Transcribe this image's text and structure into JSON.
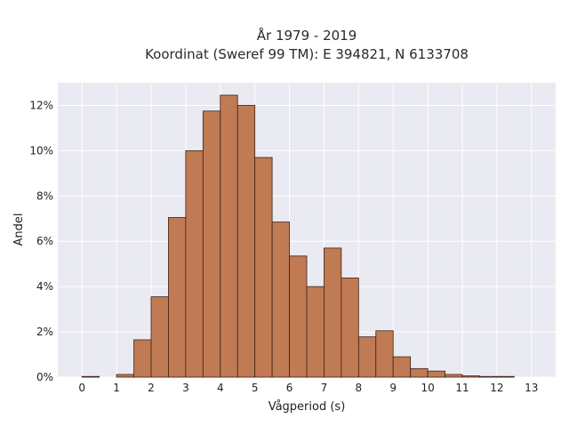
{
  "chart_data": {
    "type": "bar",
    "title_lines": [
      "År 1979 - 2019",
      "Koordinat (Sweref 99 TM): E 394821, N 6133708"
    ],
    "xlabel": "Vågperiod (s)",
    "ylabel": "Andel",
    "bin_width": 0.5,
    "bin_starts": [
      0,
      0.5,
      1,
      1.5,
      2,
      2.5,
      3,
      3.5,
      4,
      4.5,
      5,
      5.5,
      6,
      6.5,
      7,
      7.5,
      8,
      8.5,
      9,
      9.5,
      10,
      10.5,
      11,
      11.5,
      12,
      12.5
    ],
    "values": [
      0.02,
      0,
      0.12,
      1.65,
      3.55,
      7.05,
      10.0,
      11.75,
      12.45,
      12.0,
      9.7,
      6.85,
      5.35,
      4.0,
      5.7,
      4.38,
      1.78,
      2.05,
      0.9,
      0.38,
      0.27,
      0.12,
      0.06,
      0.03,
      0.02,
      0
    ],
    "value_unit": "%",
    "xlim": [
      -0.7,
      13.7
    ],
    "ylim": [
      0,
      13
    ],
    "x_ticks": [
      0,
      1,
      2,
      3,
      4,
      5,
      6,
      7,
      8,
      9,
      10,
      11,
      12,
      13
    ],
    "x_tick_labels": [
      "0",
      "1",
      "2",
      "3",
      "4",
      "5",
      "6",
      "7",
      "8",
      "9",
      "10",
      "11",
      "12",
      "13"
    ],
    "y_ticks": [
      0,
      2,
      4,
      6,
      8,
      10,
      12
    ],
    "y_tick_labels": [
      "0%",
      "2%",
      "4%",
      "6%",
      "8%",
      "10%",
      "12%"
    ],
    "grid": true,
    "colors": {
      "bar_fill": "#c07a54",
      "bar_edge": "#3b2417",
      "plot_bg": "#eaeaf2",
      "grid": "#ffffff"
    }
  }
}
